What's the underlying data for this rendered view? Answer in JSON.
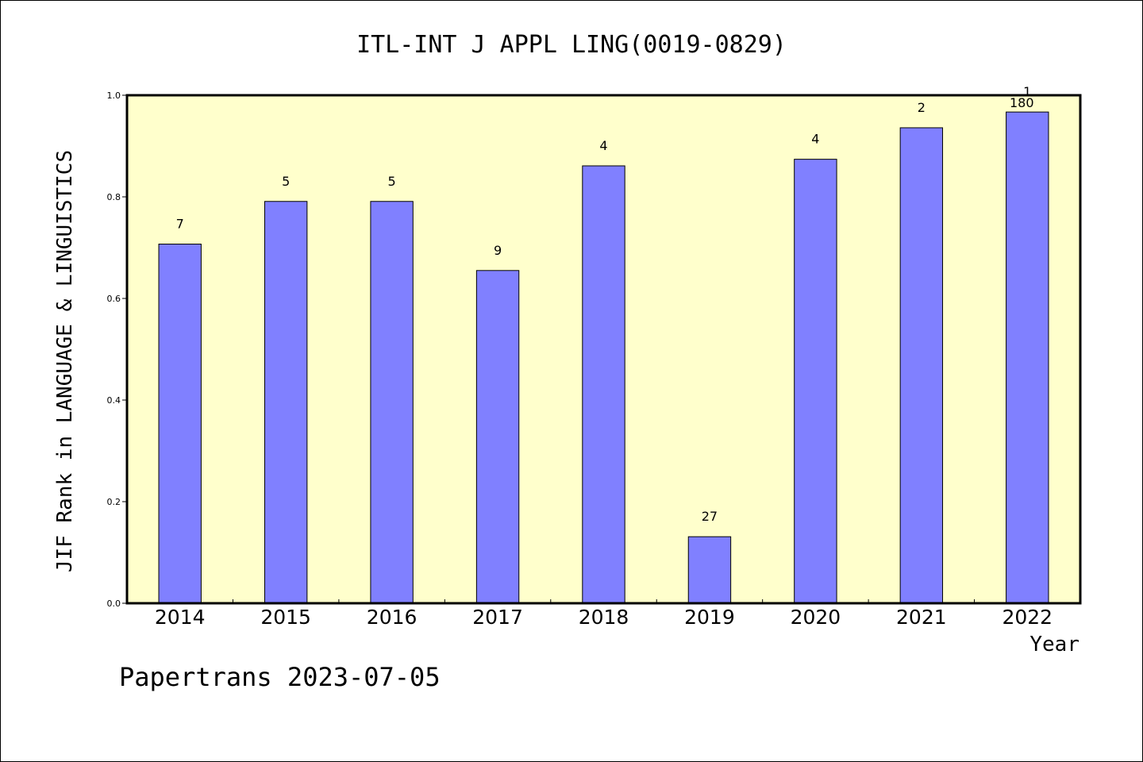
{
  "chart_data": {
    "type": "bar",
    "title": "ITL-INT J APPL LING(0019-0829)",
    "xlabel": "Year",
    "ylabel": "JIF Rank in LANGUAGE & LINGUISTICS",
    "footer": "Papertrans 2023-07-05",
    "categories": [
      "2014",
      "2015",
      "2016",
      "2017",
      "2018",
      "2019",
      "2020",
      "2021",
      "2022"
    ],
    "values": [
      0.707,
      0.791,
      0.791,
      0.655,
      0.861,
      0.131,
      0.874,
      0.936,
      0.967
    ],
    "bar_labels": [
      "7",
      "5",
      "5",
      "9",
      "4",
      "27",
      "4",
      "2",
      "1"
    ],
    "extra_labels": [
      {
        "category": "2022",
        "text": "180"
      }
    ],
    "ylim": [
      0.0,
      1.0
    ],
    "yticks": [
      "0.0",
      "0.2",
      "0.4",
      "0.6",
      "0.8",
      "1.0"
    ],
    "colors": {
      "plot_background": "#ffffcc",
      "bar_fill": "#8080ff",
      "bar_stroke": "#000000"
    },
    "grid": false,
    "legend": "none"
  }
}
